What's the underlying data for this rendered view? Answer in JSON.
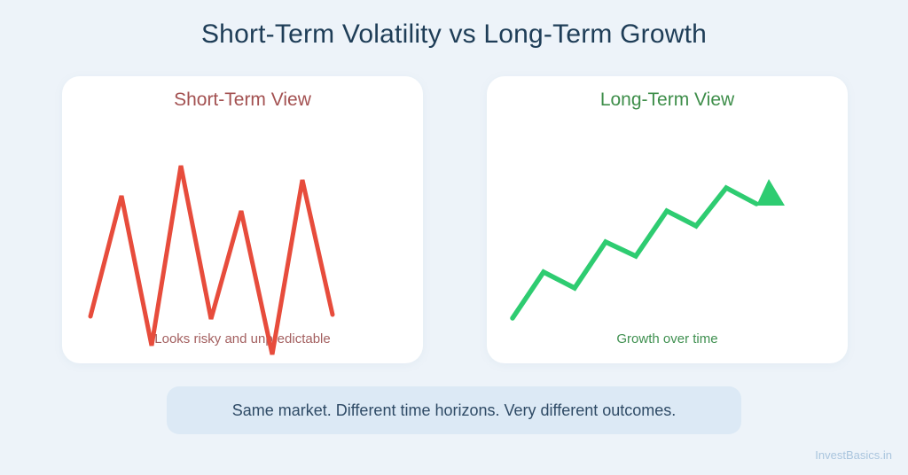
{
  "page": {
    "title": "Short-Term Volatility vs Long-Term Growth",
    "summary": "Same market. Different time horizons. Very different outcomes.",
    "watermark": "InvestBasics.in"
  },
  "colors": {
    "page_background": "#edf3f9",
    "card_background": "#ffffff",
    "title_text": "#1e3d57",
    "volatility_red": "#e74c3c",
    "volatility_label": "#a35151",
    "growth_green": "#2ecc71",
    "growth_label": "#3e8e4a",
    "summary_background": "#dce9f5",
    "summary_text": "#2f4b66",
    "watermark_text": "#aac5de"
  },
  "cards": {
    "short_term": {
      "title": "Short-Term View",
      "caption": "Looks risky and unpredictable",
      "line_points": "32,271 67,135 101,304 134,101 168,274 202,152 237,314 271,117 305,269"
    },
    "long_term": {
      "title": "Long-Term View",
      "caption": "Growth over time",
      "line_points": "29,273 64,221 99,239 134,187 168,203 203,152 236,169 270,126 304,144",
      "arrow_points": "318,116 304,146 336,146"
    }
  }
}
